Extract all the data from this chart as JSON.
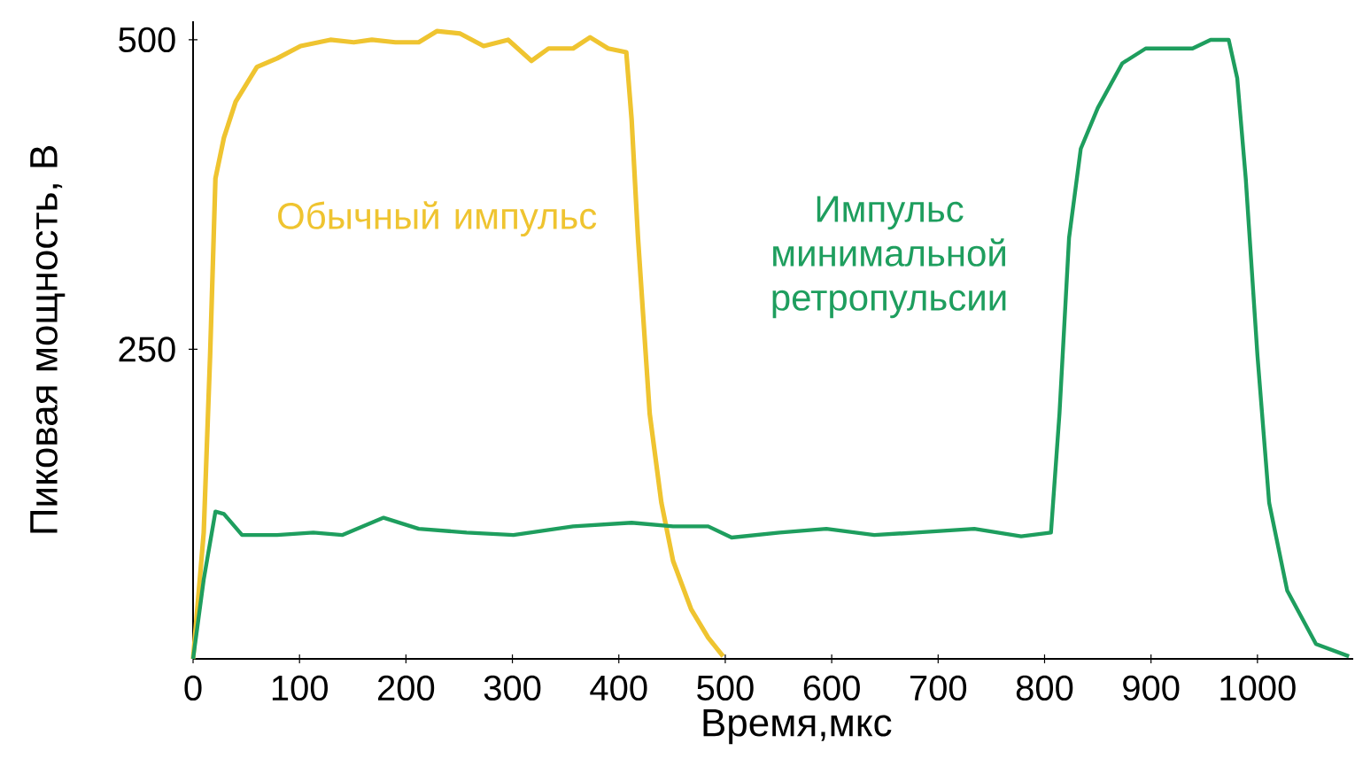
{
  "chart_data": {
    "type": "line",
    "xlabel": "Время,мкс",
    "ylabel": "Пиковая мощность, В",
    "xlim": [
      0,
      1090
    ],
    "ylim": [
      0,
      515
    ],
    "xticks": [
      0,
      100,
      200,
      300,
      400,
      500,
      600,
      700,
      800,
      900,
      1000
    ],
    "yticks": [
      250,
      500
    ],
    "grid": false,
    "legend": false,
    "marker": "none",
    "line_style": "solid",
    "series": [
      {
        "name": "Обычный импульс",
        "color": "#efc430",
        "x": [
          0,
          10,
          16,
          21,
          29,
          40,
          60,
          79,
          101,
          129,
          151,
          168,
          190,
          212,
          229,
          251,
          273,
          296,
          318,
          334,
          357,
          373,
          390,
          407,
          412,
          418,
          429,
          440,
          451,
          468,
          484,
          498
        ],
        "values": [
          0,
          102,
          245,
          388,
          421,
          450,
          478,
          485,
          495,
          500,
          498,
          500,
          498,
          498,
          507,
          505,
          495,
          500,
          483,
          493,
          493,
          502,
          493,
          490,
          436,
          340,
          198,
          126,
          79,
          40,
          17,
          2
        ]
      },
      {
        "name": "Импульс минимальной ретропульсии",
        "color": "#1e9e5e",
        "x": [
          0,
          10,
          21,
          29,
          46,
          79,
          113,
          140,
          179,
          212,
          257,
          301,
          357,
          412,
          451,
          484,
          506,
          551,
          595,
          640,
          679,
          734,
          778,
          806,
          814,
          823,
          834,
          850,
          873,
          895,
          917,
          939,
          956,
          973,
          981,
          989,
          1000,
          1011,
          1028,
          1055,
          1086
        ],
        "values": [
          0,
          64,
          119,
          117,
          100,
          100,
          102,
          100,
          114,
          105,
          102,
          100,
          107,
          110,
          107,
          107,
          98,
          102,
          105,
          100,
          102,
          105,
          99,
          102,
          198,
          340,
          412,
          445,
          481,
          493,
          493,
          493,
          500,
          500,
          469,
          388,
          245,
          126,
          55,
          12,
          2
        ]
      }
    ]
  }
}
